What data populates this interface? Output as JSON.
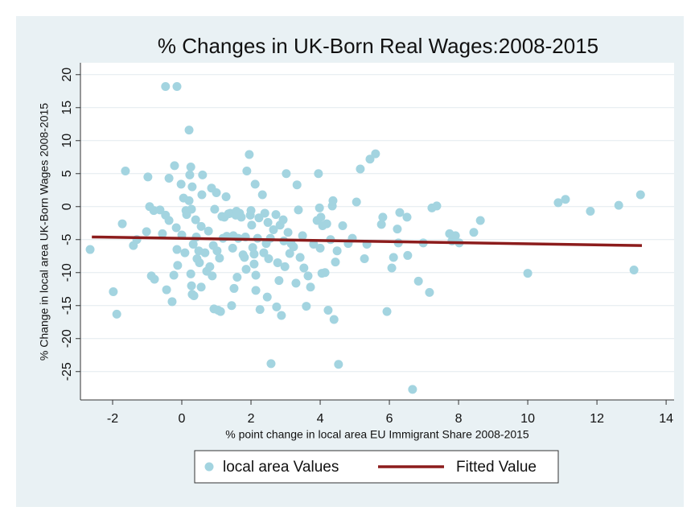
{
  "chart_data": {
    "type": "scatter",
    "title": "% Changes in UK-Born Real Wages:2008-2015",
    "x_label": "% point change in local area EU Immigrant Share 2008-2015",
    "y_label": "% Change in local area UK-Born Wages 2008-2015",
    "xlim": [
      -2.93,
      14.23
    ],
    "ylim": [
      -29.3,
      21.8
    ],
    "xticks": [
      -2,
      0,
      2,
      4,
      6,
      8,
      10,
      12,
      14
    ],
    "yticks": [
      20,
      15,
      10,
      5,
      0,
      -5,
      -10,
      -15,
      -20,
      -25
    ],
    "grid": true,
    "legend": "bottom",
    "series": [
      {
        "name": "local area Values",
        "type": "scatter",
        "color": "#a3d4e0",
        "x": [
          -2.65,
          -1.98,
          -1.88,
          -1.72,
          -1.63,
          -1.4,
          -1.3,
          -1.02,
          -0.98,
          -0.93,
          -0.88,
          -0.79,
          -0.81,
          -0.63,
          -0.56,
          -0.47,
          -0.47,
          -0.44,
          -0.37,
          -0.37,
          -0.28,
          -0.23,
          -0.21,
          -0.16,
          -0.14,
          -0.14,
          -0.12,
          -0.02,
          0,
          0.05,
          0.09,
          0.12,
          0.14,
          0.21,
          0.21,
          0.23,
          0.26,
          0.26,
          0.28,
          0.28,
          0.3,
          0.3,
          0.33,
          0.35,
          0.4,
          0.42,
          0.44,
          0.49,
          0.51,
          0.56,
          0.56,
          0.58,
          0.6,
          0.67,
          0.72,
          0.77,
          0.81,
          0.86,
          0.88,
          0.91,
          0.93,
          0.95,
          1,
          1.02,
          1.05,
          1.09,
          1.12,
          1.16,
          1.19,
          1.23,
          1.28,
          1.3,
          1.35,
          1.4,
          1.44,
          1.47,
          1.49,
          1.51,
          1.56,
          1.58,
          1.6,
          1.63,
          1.67,
          1.72,
          1.77,
          1.81,
          1.84,
          1.86,
          1.88,
          1.95,
          1.98,
          2,
          2.02,
          2.05,
          2.09,
          2.09,
          2.12,
          2.14,
          2.14,
          2.19,
          2.23,
          2.26,
          2.33,
          2.37,
          2.4,
          2.44,
          2.47,
          2.49,
          2.51,
          2.56,
          2.58,
          2.65,
          2.72,
          2.74,
          2.77,
          2.81,
          2.84,
          2.88,
          2.93,
          2.95,
          2.98,
          3.02,
          3.07,
          3.12,
          3.16,
          3.23,
          3.3,
          3.33,
          3.37,
          3.42,
          3.49,
          3.53,
          3.6,
          3.65,
          3.72,
          3.81,
          3.91,
          3.95,
          3.98,
          4,
          4.02,
          4.05,
          4.07,
          4.14,
          4.19,
          4.23,
          4.3,
          4.35,
          4.37,
          4.4,
          4.44,
          4.49,
          4.53,
          4.65,
          4.81,
          4.93,
          5.05,
          5.16,
          5.28,
          5.35,
          5.44,
          5.6,
          5.77,
          5.81,
          5.93,
          6.07,
          6.12,
          6.23,
          6.26,
          6.3,
          6.51,
          6.53,
          6.67,
          6.84,
          6.98,
          7.16,
          7.23,
          7.37,
          7.74,
          7.81,
          7.91,
          8.02,
          8.44,
          8.63,
          10,
          10.88,
          11.09,
          11.81,
          12.63,
          13.07,
          13.26
        ],
        "y": [
          -6.5,
          -12.9,
          -16.3,
          -2.6,
          5.4,
          -5.9,
          -5,
          -3.8,
          4.5,
          0,
          -10.5,
          -11,
          -0.6,
          -0.5,
          -4.1,
          -1.3,
          18.2,
          -12.6,
          4.3,
          -2.1,
          -14.4,
          -10.4,
          6.2,
          -3.2,
          18.2,
          -6.5,
          -8.9,
          3.4,
          -4.3,
          1.3,
          -7,
          -0.6,
          -1.2,
          11.6,
          0.9,
          4.8,
          6,
          -10.2,
          -0.4,
          -12,
          3,
          -13.3,
          -5.7,
          -13.5,
          -2,
          -4.6,
          -7.9,
          -6.7,
          -8.5,
          -3,
          -12.2,
          1.8,
          4.8,
          -7,
          -9.8,
          -3.7,
          -9.1,
          2.8,
          -10.5,
          -5.9,
          -15.5,
          -0.4,
          2.1,
          -6.7,
          -15.7,
          -7.8,
          -15.9,
          -1.5,
          -4.8,
          -1.6,
          1.5,
          -4.5,
          -1.1,
          -1,
          -15,
          -6.3,
          -4.4,
          -12.4,
          -1.3,
          -0.7,
          -10.7,
          -4.8,
          -1,
          -1.6,
          -7.3,
          -7.7,
          -4.6,
          -9.5,
          5.4,
          7.9,
          -1.3,
          -0.6,
          -2.8,
          -6.2,
          -7.2,
          -8.7,
          3.4,
          -12.7,
          -10.4,
          -4.8,
          -1.7,
          -15.6,
          1.8,
          -7,
          -1,
          -5.6,
          -13.7,
          -2.4,
          -7.9,
          -4.8,
          -23.8,
          -3.5,
          -1.2,
          -15.2,
          -8.5,
          -11.2,
          -2.8,
          -16.5,
          -2,
          -5.2,
          -9.1,
          5,
          -3.9,
          -7.1,
          -5.6,
          -6.1,
          -11.6,
          3.3,
          -0.5,
          -7.7,
          -4.4,
          -9.3,
          -15.1,
          -10.5,
          -12.2,
          -5.7,
          -2.1,
          5,
          -0.2,
          -6.3,
          -1.6,
          -10.1,
          -2.9,
          -10,
          -2.6,
          -15.7,
          -5,
          0.1,
          0.9,
          -17.1,
          -8.4,
          -6.7,
          -23.9,
          -2.9,
          -5.6,
          -4.8,
          0.7,
          5.7,
          -7.9,
          -5.7,
          7.2,
          8,
          -2.7,
          -1.6,
          -15.9,
          -9.3,
          -7.7,
          -3.4,
          -5.5,
          -0.9,
          -1.6,
          -7.4,
          -27.7,
          -11.3,
          -5.5,
          -13,
          -0.2,
          0.1,
          -4.1,
          -5.2,
          -4.4,
          -5.5,
          -3.9,
          -2.1,
          -10.1,
          0.6,
          1.1,
          -0.7,
          0.2,
          -9.6,
          1.8
        ]
      },
      {
        "name": "Fitted Value",
        "type": "line",
        "color": "#8c1c1c",
        "x": [
          -2.6,
          13.3
        ],
        "y": [
          -4.6,
          -5.9
        ]
      }
    ]
  }
}
